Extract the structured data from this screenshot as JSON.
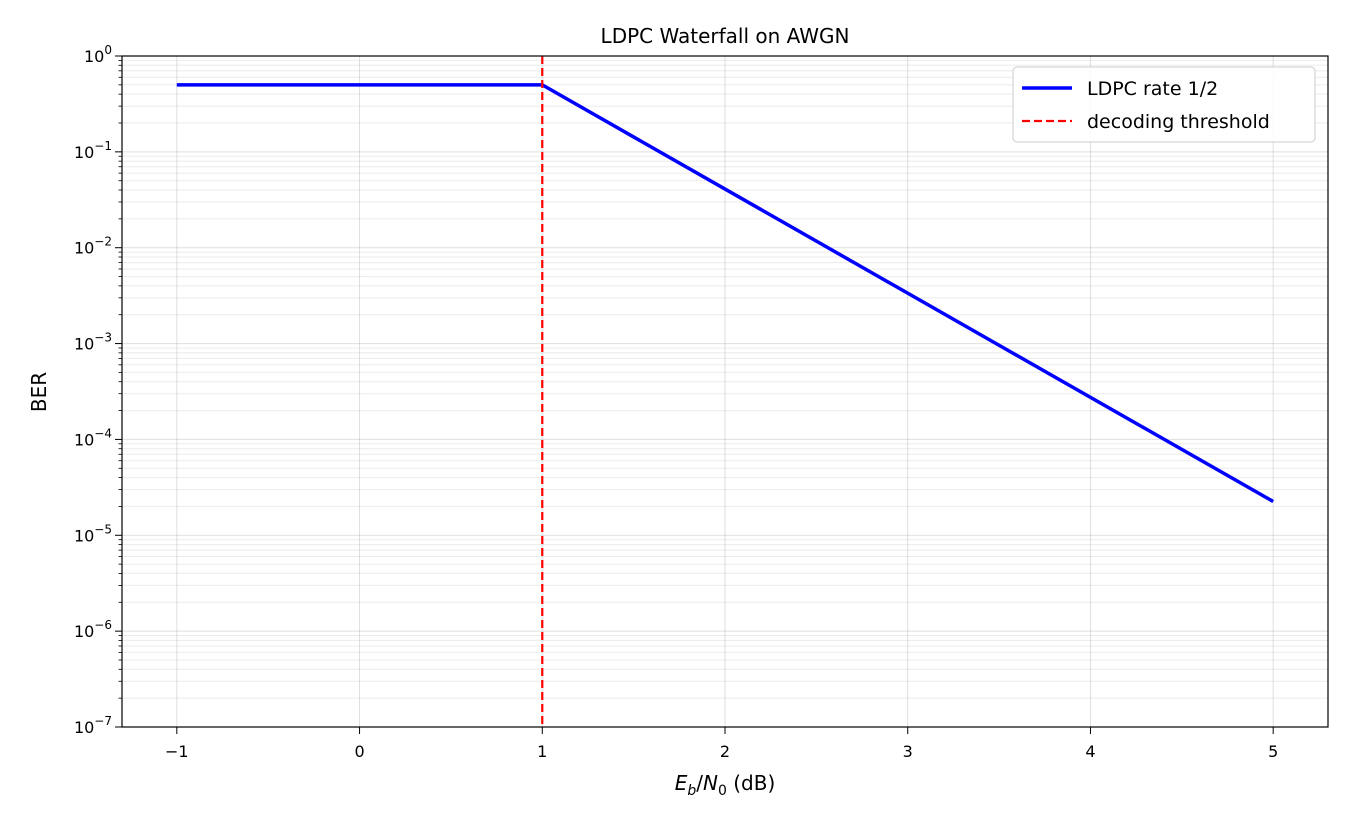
{
  "chart_data": {
    "type": "line",
    "title": "LDPC Waterfall on AWGN",
    "xlabel": "(dB)",
    "xlabel_math": {
      "E": "E",
      "b": "b",
      "slash": "/",
      "N": "N",
      "zero": "0"
    },
    "ylabel": "BER",
    "xlim": [
      -1.3,
      5.3
    ],
    "ylim": [
      1e-07,
      1
    ],
    "yscale": "log",
    "grid": true,
    "legend_position": "upper right",
    "x_ticks": [
      -1,
      0,
      1,
      2,
      3,
      4,
      5
    ],
    "x_tick_labels": [
      "−1",
      "0",
      "1",
      "2",
      "3",
      "4",
      "5"
    ],
    "y_ticks": [
      {
        "exp": 0,
        "base": "10",
        "sup": "0"
      },
      {
        "exp": -1,
        "base": "10",
        "sup": "−1"
      },
      {
        "exp": -2,
        "base": "10",
        "sup": "−2"
      },
      {
        "exp": -3,
        "base": "10",
        "sup": "−3"
      },
      {
        "exp": -4,
        "base": "10",
        "sup": "−4"
      },
      {
        "exp": -5,
        "base": "10",
        "sup": "−5"
      },
      {
        "exp": -6,
        "base": "10",
        "sup": "−6"
      },
      {
        "exp": -7,
        "base": "10",
        "sup": "−7"
      }
    ],
    "series": [
      {
        "name": "LDPC rate 1/2",
        "color": "#0000ff",
        "style": "solid",
        "x": [
          -1,
          1,
          5
        ],
        "y": [
          0.5,
          0.5,
          2.25e-05
        ]
      },
      {
        "name": "decoding threshold",
        "color": "#ff0000",
        "style": "dashed",
        "vertical_x": 1
      }
    ]
  }
}
